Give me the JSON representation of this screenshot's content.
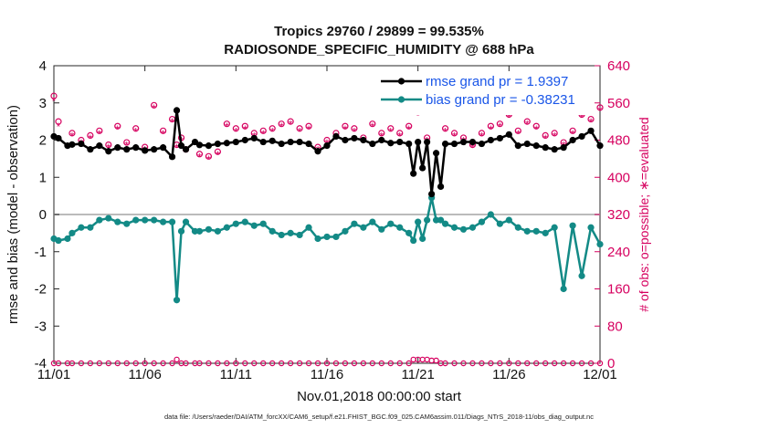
{
  "chart_data": {
    "type": "line",
    "title": [
      "Tropics 29760 / 29899 = 99.535%",
      "RADIOSONDE_SPECIFIC_HUMIDITY @ 688 hPa"
    ],
    "xlabel": "Nov.01,2018 00:00:00 start",
    "ylabel_left": "rmse and bias (model - observation)",
    "ylabel_right": "# of obs: o=possible; ∗=evaluated",
    "xlim": [
      0,
      30
    ],
    "ylim_left": [
      -4,
      4
    ],
    "ylim_right": [
      0,
      640
    ],
    "x_ticks": [
      0,
      5,
      10,
      15,
      20,
      25,
      30
    ],
    "x_tick_labels": [
      "11/01",
      "11/06",
      "11/11",
      "11/16",
      "11/21",
      "11/26",
      "12/01"
    ],
    "y_ticks_left": [
      -4,
      -3,
      -2,
      -1,
      0,
      1,
      2,
      3,
      4
    ],
    "y_ticks_right": [
      0,
      80,
      160,
      240,
      320,
      400,
      480,
      560,
      640
    ],
    "zero_line": 0,
    "colors": {
      "rmse": "#000000",
      "bias": "#138a86",
      "obs": "#d6005f",
      "zero": "#bbbbbb",
      "legend_text": "#1a56e8"
    },
    "legend": [
      {
        "name": "rmse grand pr = 1.9397",
        "key": "rmse"
      },
      {
        "name": "bias grand pr = -0.38231",
        "key": "bias"
      }
    ],
    "rmse": {
      "x": [
        0,
        0.25,
        0.75,
        1,
        1.5,
        2,
        2.5,
        3,
        3.5,
        4,
        4.5,
        5,
        5.5,
        6,
        6.5,
        6.75,
        7,
        7.25,
        7.75,
        8,
        8.5,
        9,
        9.5,
        10,
        10.5,
        11,
        11.5,
        12,
        12.5,
        13,
        13.5,
        14,
        14.5,
        15,
        15.5,
        16,
        16.5,
        17,
        17.5,
        18,
        18.5,
        19,
        19.5,
        19.75,
        20,
        20.25,
        20.5,
        20.75,
        21,
        21.25,
        21.5,
        22,
        22.5,
        23,
        23.5,
        24,
        24.5,
        25,
        25.5,
        26,
        26.5,
        27,
        27.5,
        28,
        28.5,
        29,
        29.5,
        30
      ],
      "y": [
        2.1,
        2.05,
        1.85,
        1.88,
        1.9,
        1.75,
        1.85,
        1.7,
        1.8,
        1.75,
        1.8,
        1.72,
        1.75,
        1.8,
        1.55,
        2.8,
        1.85,
        1.75,
        1.95,
        1.87,
        1.85,
        1.9,
        1.92,
        1.95,
        2.0,
        2.05,
        1.95,
        1.98,
        1.9,
        1.95,
        1.95,
        1.9,
        1.7,
        1.85,
        2.1,
        2.0,
        2.05,
        2.0,
        1.9,
        2.0,
        1.92,
        1.95,
        1.9,
        1.1,
        1.95,
        1.25,
        1.95,
        0.55,
        1.65,
        0.75,
        1.9,
        1.9,
        1.95,
        1.95,
        1.9,
        2.0,
        2.05,
        2.15,
        1.85,
        1.9,
        1.85,
        1.8,
        1.75,
        1.8,
        2.0,
        2.1,
        2.25,
        1.85
      ]
    },
    "bias": {
      "x": [
        0,
        0.25,
        0.75,
        1,
        1.5,
        2,
        2.5,
        3,
        3.5,
        4,
        4.5,
        5,
        5.5,
        6,
        6.5,
        6.75,
        7,
        7.25,
        7.75,
        8,
        8.5,
        9,
        9.5,
        10,
        10.5,
        11,
        11.5,
        12,
        12.5,
        13,
        13.5,
        14,
        14.5,
        15,
        15.5,
        16,
        16.5,
        17,
        17.5,
        18,
        18.5,
        19,
        19.5,
        19.75,
        20,
        20.25,
        20.5,
        20.75,
        21,
        21.25,
        21.5,
        22,
        22.5,
        23,
        23.5,
        24,
        24.5,
        25,
        25.5,
        26,
        26.5,
        27,
        27.5,
        28,
        28.5,
        29,
        29.5,
        30
      ],
      "y": [
        -0.65,
        -0.7,
        -0.65,
        -0.5,
        -0.35,
        -0.35,
        -0.15,
        -0.1,
        -0.2,
        -0.25,
        -0.15,
        -0.15,
        -0.15,
        -0.2,
        -0.2,
        -2.3,
        -0.45,
        -0.2,
        -0.45,
        -0.45,
        -0.4,
        -0.45,
        -0.35,
        -0.25,
        -0.2,
        -0.3,
        -0.25,
        -0.45,
        -0.55,
        -0.5,
        -0.55,
        -0.35,
        -0.65,
        -0.6,
        -0.6,
        -0.45,
        -0.25,
        -0.35,
        -0.2,
        -0.4,
        -0.25,
        -0.35,
        -0.5,
        -0.7,
        -0.2,
        -0.65,
        -0.15,
        0.45,
        -0.15,
        -0.15,
        -0.25,
        -0.35,
        -0.4,
        -0.35,
        -0.2,
        0.0,
        -0.25,
        -0.15,
        -0.35,
        -0.45,
        -0.45,
        -0.5,
        -0.35,
        -2.0,
        -0.3,
        -1.65,
        -0.35,
        -0.8
      ]
    },
    "obs_possible": {
      "x": [
        0,
        0.25,
        1,
        1.5,
        2,
        2.5,
        3,
        3.5,
        4,
        4.5,
        5,
        5.5,
        6,
        6.5,
        6.75,
        7,
        7.25,
        8,
        8.5,
        9,
        9.5,
        10,
        10.5,
        11,
        11.5,
        12,
        12.5,
        13,
        13.5,
        14,
        14.5,
        15,
        15.5,
        16,
        16.5,
        17,
        17.5,
        18,
        18.5,
        19,
        19.5,
        20,
        20.5,
        21,
        21.5,
        22,
        22.5,
        23,
        23.5,
        24,
        24.5,
        25,
        25.5,
        26,
        26.5,
        27,
        27.5,
        28,
        28.5,
        29,
        29.5,
        30
      ],
      "y": [
        575,
        520,
        495,
        480,
        490,
        500,
        470,
        510,
        475,
        505,
        465,
        555,
        500,
        525,
        470,
        485,
        460,
        450,
        445,
        455,
        515,
        505,
        510,
        495,
        500,
        505,
        515,
        520,
        505,
        510,
        465,
        480,
        495,
        510,
        505,
        485,
        515,
        495,
        505,
        495,
        510,
        540,
        485,
        545,
        505,
        495,
        485,
        470,
        495,
        510,
        515,
        535,
        500,
        520,
        510,
        490,
        495,
        475,
        500,
        535,
        525,
        550
      ]
    },
    "obs_evaluated": {
      "x": [
        0,
        0.25,
        1,
        1.5,
        2,
        2.5,
        3,
        3.5,
        4,
        4.5,
        5,
        5.5,
        6,
        6.5,
        6.75,
        7,
        7.25,
        8,
        8.5,
        9,
        9.5,
        10,
        10.5,
        11,
        11.5,
        12,
        12.5,
        13,
        13.5,
        14,
        14.5,
        15,
        15.5,
        16,
        16.5,
        17,
        17.5,
        18,
        18.5,
        19,
        19.5,
        20,
        20.5,
        21,
        21.5,
        22,
        22.5,
        23,
        23.5,
        24,
        24.5,
        25,
        25.5,
        26,
        26.5,
        27,
        27.5,
        28,
        28.5,
        29,
        29.5,
        30
      ],
      "y": [
        565,
        510,
        490,
        475,
        485,
        495,
        465,
        505,
        470,
        500,
        460,
        550,
        495,
        520,
        465,
        480,
        455,
        445,
        440,
        450,
        510,
        500,
        505,
        490,
        495,
        500,
        510,
        515,
        500,
        505,
        460,
        475,
        490,
        505,
        500,
        480,
        510,
        490,
        500,
        490,
        505,
        535,
        480,
        540,
        500,
        490,
        480,
        465,
        490,
        505,
        510,
        530,
        495,
        515,
        505,
        485,
        490,
        470,
        495,
        530,
        520,
        545
      ]
    },
    "obs_bottom": {
      "x": [
        0,
        0.25,
        0.75,
        1,
        1.5,
        2,
        2.5,
        3,
        3.5,
        4,
        4.5,
        5,
        5.5,
        6,
        6.5,
        6.75,
        7,
        7.25,
        7.75,
        8,
        8.5,
        9,
        9.5,
        10,
        10.5,
        11,
        11.5,
        12,
        12.5,
        13,
        13.5,
        14,
        14.5,
        15,
        15.5,
        16,
        16.5,
        17,
        17.5,
        18,
        18.5,
        19,
        19.5,
        19.75,
        20,
        20.25,
        20.5,
        20.75,
        21,
        21.25,
        21.5,
        22,
        22.5,
        23,
        23.5,
        24,
        24.5,
        25,
        25.5,
        26,
        26.5,
        27,
        27.5,
        28,
        28.5,
        29,
        29.5,
        30
      ],
      "y": [
        0,
        0,
        0,
        0,
        0,
        0,
        0,
        0,
        0,
        0,
        0,
        0,
        0,
        0,
        0,
        8,
        0,
        0,
        0,
        0,
        0,
        0,
        0,
        0,
        0,
        0,
        0,
        0,
        0,
        0,
        0,
        0,
        0,
        0,
        0,
        0,
        0,
        0,
        0,
        0,
        0,
        0,
        0,
        8,
        8,
        8,
        8,
        6,
        6,
        0,
        0,
        0,
        0,
        0,
        0,
        0,
        0,
        0,
        0,
        0,
        0,
        0,
        0,
        0,
        0,
        0,
        0,
        0
      ]
    },
    "footer": "data file: /Users/raeder/DAI/ATM_forcXX/CAM6_setup/f.e21.FHIST_BGC.f09_025.CAM6assim.011/Diags_NTrS_2018-11/obs_diag_output.nc"
  }
}
